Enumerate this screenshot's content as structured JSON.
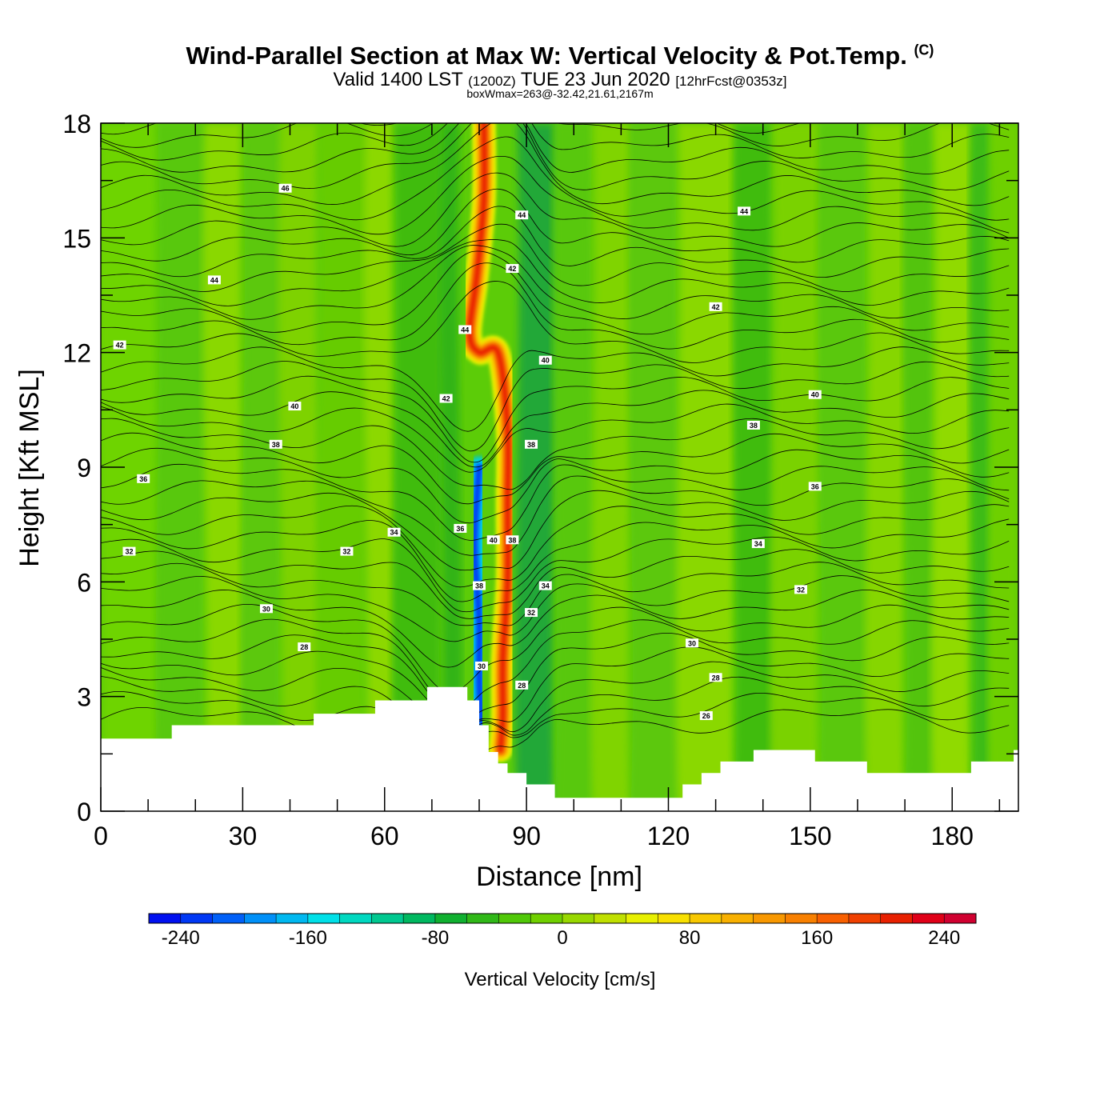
{
  "header": {
    "title": "Wind-Parallel Section at Max W: Vertical Velocity & Pot.Temp.",
    "copyright": "(C)",
    "valid_prefix": "Valid 1400 LST",
    "valid_utc": "(1200Z)",
    "valid_date": "TUE 23 Jun 2020",
    "forecast": "[12hrFcst@0353z]",
    "box_wmax": "boxWmax=263@-32.42,21.61,2167m"
  },
  "chart_data": {
    "type": "heatmap",
    "title": "Wind-Parallel Section at Max W: Vertical Velocity & Pot.Temp.",
    "xlabel": "Distance [nm]",
    "ylabel": "Height [Kft MSL]",
    "xlim": [
      0,
      194
    ],
    "ylim": [
      0,
      18
    ],
    "xticks": [
      0,
      30,
      60,
      90,
      120,
      150,
      180
    ],
    "xtick_labels": [
      "0",
      "30",
      "60",
      "90",
      "120",
      "150",
      "180"
    ],
    "yticks": [
      0,
      3,
      6,
      9,
      12,
      15,
      18
    ],
    "ytick_labels": [
      "0",
      "3",
      "6",
      "9",
      "12",
      "15",
      "18"
    ],
    "terrain_kft": [
      [
        0,
        1.9
      ],
      [
        15,
        1.9
      ],
      [
        15,
        2.25
      ],
      [
        45,
        2.25
      ],
      [
        45,
        2.55
      ],
      [
        58,
        2.55
      ],
      [
        58,
        2.9
      ],
      [
        69,
        2.9
      ],
      [
        69,
        3.25
      ],
      [
        77.5,
        3.25
      ],
      [
        77.5,
        2.9
      ],
      [
        80,
        2.9
      ],
      [
        80,
        2.25
      ],
      [
        82,
        2.25
      ],
      [
        82,
        1.55
      ],
      [
        84,
        1.55
      ],
      [
        84,
        1.25
      ],
      [
        86,
        1.25
      ],
      [
        86,
        1.0
      ],
      [
        90,
        1.0
      ],
      [
        90,
        0.7
      ],
      [
        96,
        0.7
      ],
      [
        96,
        0.35
      ],
      [
        123,
        0.35
      ],
      [
        123,
        0.7
      ],
      [
        127,
        0.7
      ],
      [
        127,
        1.0
      ],
      [
        131,
        1.0
      ],
      [
        131,
        1.3
      ],
      [
        138,
        1.3
      ],
      [
        138,
        1.6
      ],
      [
        151,
        1.6
      ],
      [
        151,
        1.3
      ],
      [
        162,
        1.3
      ],
      [
        162,
        1.0
      ],
      [
        184,
        1.0
      ],
      [
        184,
        1.3
      ],
      [
        193,
        1.3
      ],
      [
        193,
        1.6
      ],
      [
        194,
        1.6
      ]
    ],
    "updraft_core": [
      [
        81,
        18
      ],
      [
        81,
        16
      ],
      [
        79.5,
        14
      ],
      [
        78,
        12.5
      ],
      [
        80,
        12
      ],
      [
        84,
        12
      ],
      [
        86,
        10
      ],
      [
        86,
        8
      ],
      [
        86,
        6
      ],
      [
        85,
        4
      ],
      [
        85,
        2.5
      ],
      [
        84.5,
        1.6
      ]
    ],
    "downdraft_core": [
      [
        80,
        9
      ],
      [
        79,
        7
      ],
      [
        80,
        5
      ],
      [
        80,
        3.5
      ],
      [
        80.5,
        2.3
      ]
    ],
    "contour_labels": [
      {
        "value": "46",
        "x": 39,
        "y": 16.3
      },
      {
        "value": "44",
        "x": 24,
        "y": 13.9
      },
      {
        "value": "42",
        "x": 4,
        "y": 12.2
      },
      {
        "value": "40",
        "x": 41,
        "y": 10.6
      },
      {
        "value": "38",
        "x": 37,
        "y": 9.6
      },
      {
        "value": "36",
        "x": 9,
        "y": 8.7
      },
      {
        "value": "34",
        "x": 62,
        "y": 7.3
      },
      {
        "value": "32",
        "x": 6,
        "y": 6.8
      },
      {
        "value": "32",
        "x": 52,
        "y": 6.8
      },
      {
        "value": "30",
        "x": 35,
        "y": 5.3
      },
      {
        "value": "28",
        "x": 43,
        "y": 4.3
      },
      {
        "value": "44",
        "x": 77,
        "y": 12.6
      },
      {
        "value": "42",
        "x": 73,
        "y": 10.8
      },
      {
        "value": "44",
        "x": 89,
        "y": 15.6
      },
      {
        "value": "42",
        "x": 87,
        "y": 14.2
      },
      {
        "value": "40",
        "x": 94,
        "y": 11.8
      },
      {
        "value": "38",
        "x": 91,
        "y": 9.6
      },
      {
        "value": "36",
        "x": 76,
        "y": 7.4
      },
      {
        "value": "40",
        "x": 83,
        "y": 7.1
      },
      {
        "value": "38",
        "x": 87,
        "y": 7.1
      },
      {
        "value": "38",
        "x": 80,
        "y": 5.9
      },
      {
        "value": "34",
        "x": 94,
        "y": 5.9
      },
      {
        "value": "32",
        "x": 91,
        "y": 5.2
      },
      {
        "value": "30",
        "x": 80.5,
        "y": 3.8
      },
      {
        "value": "28",
        "x": 89,
        "y": 3.3
      },
      {
        "value": "44",
        "x": 136,
        "y": 15.7
      },
      {
        "value": "42",
        "x": 130,
        "y": 13.2
      },
      {
        "value": "40",
        "x": 151,
        "y": 10.9
      },
      {
        "value": "38",
        "x": 138,
        "y": 10.1
      },
      {
        "value": "36",
        "x": 151,
        "y": 8.5
      },
      {
        "value": "34",
        "x": 139,
        "y": 7.0
      },
      {
        "value": "32",
        "x": 148,
        "y": 5.8
      },
      {
        "value": "30",
        "x": 125,
        "y": 4.4
      },
      {
        "value": "28",
        "x": 130,
        "y": 3.5
      },
      {
        "value": "26",
        "x": 128,
        "y": 2.5
      }
    ]
  },
  "colorbar": {
    "label": "Vertical Velocity [cm/s]",
    "min": -260,
    "max": 260,
    "tick_values": [
      -240,
      -160,
      -80,
      0,
      80,
      160,
      240
    ],
    "tick_labels": [
      "-240",
      "-160",
      "-80",
      "0",
      "80",
      "160",
      "240"
    ],
    "colors": [
      "#0010f0",
      "#0038f5",
      "#0060f8",
      "#0090f8",
      "#00b8f0",
      "#00e0e8",
      "#00d8c0",
      "#00c890",
      "#00b860",
      "#10b030",
      "#30b818",
      "#50c808",
      "#70d000",
      "#98d800",
      "#c0e000",
      "#e8f000",
      "#f8e000",
      "#f8c800",
      "#f8b000",
      "#f89800",
      "#f88000",
      "#f86000",
      "#f04000",
      "#e82000",
      "#e00018",
      "#d00030"
    ]
  }
}
